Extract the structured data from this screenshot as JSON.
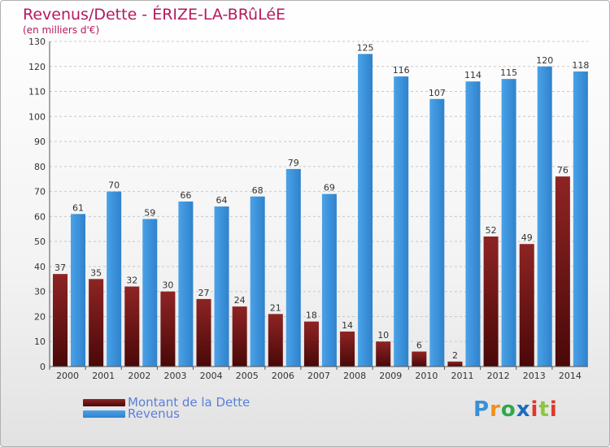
{
  "title": "Revenus/Dette - ÉRIZE-LA-BRûLéE",
  "subtitle": "(en milliers d'€)",
  "logo_text": "Proxiti",
  "colors": {
    "dette": "#7a1a1a",
    "revenus": "#3f96df",
    "title": "#b5195e",
    "grid": "#c8c8c8"
  },
  "chart_data": {
    "type": "bar",
    "title": "Revenus/Dette - ÉRIZE-LA-BRûLéE",
    "ylabel": "(en milliers d'€)",
    "ylim": [
      0,
      130
    ],
    "yticks": [
      0,
      10,
      20,
      30,
      40,
      50,
      60,
      70,
      80,
      90,
      100,
      110,
      120,
      130
    ],
    "grid": true,
    "legend_position": "bottom-left",
    "categories": [
      "2000",
      "2001",
      "2002",
      "2003",
      "2004",
      "2005",
      "2006",
      "2007",
      "2008",
      "2009",
      "2010",
      "2011",
      "2012",
      "2013",
      "2014"
    ],
    "series": [
      {
        "name": "Montant de la Dette",
        "values": [
          37,
          35,
          32,
          30,
          27,
          24,
          21,
          18,
          14,
          10,
          6,
          2,
          52,
          49,
          76
        ]
      },
      {
        "name": "Revenus",
        "values": [
          61,
          70,
          59,
          66,
          64,
          68,
          79,
          69,
          125,
          116,
          107,
          114,
          115,
          120,
          118
        ]
      }
    ]
  }
}
